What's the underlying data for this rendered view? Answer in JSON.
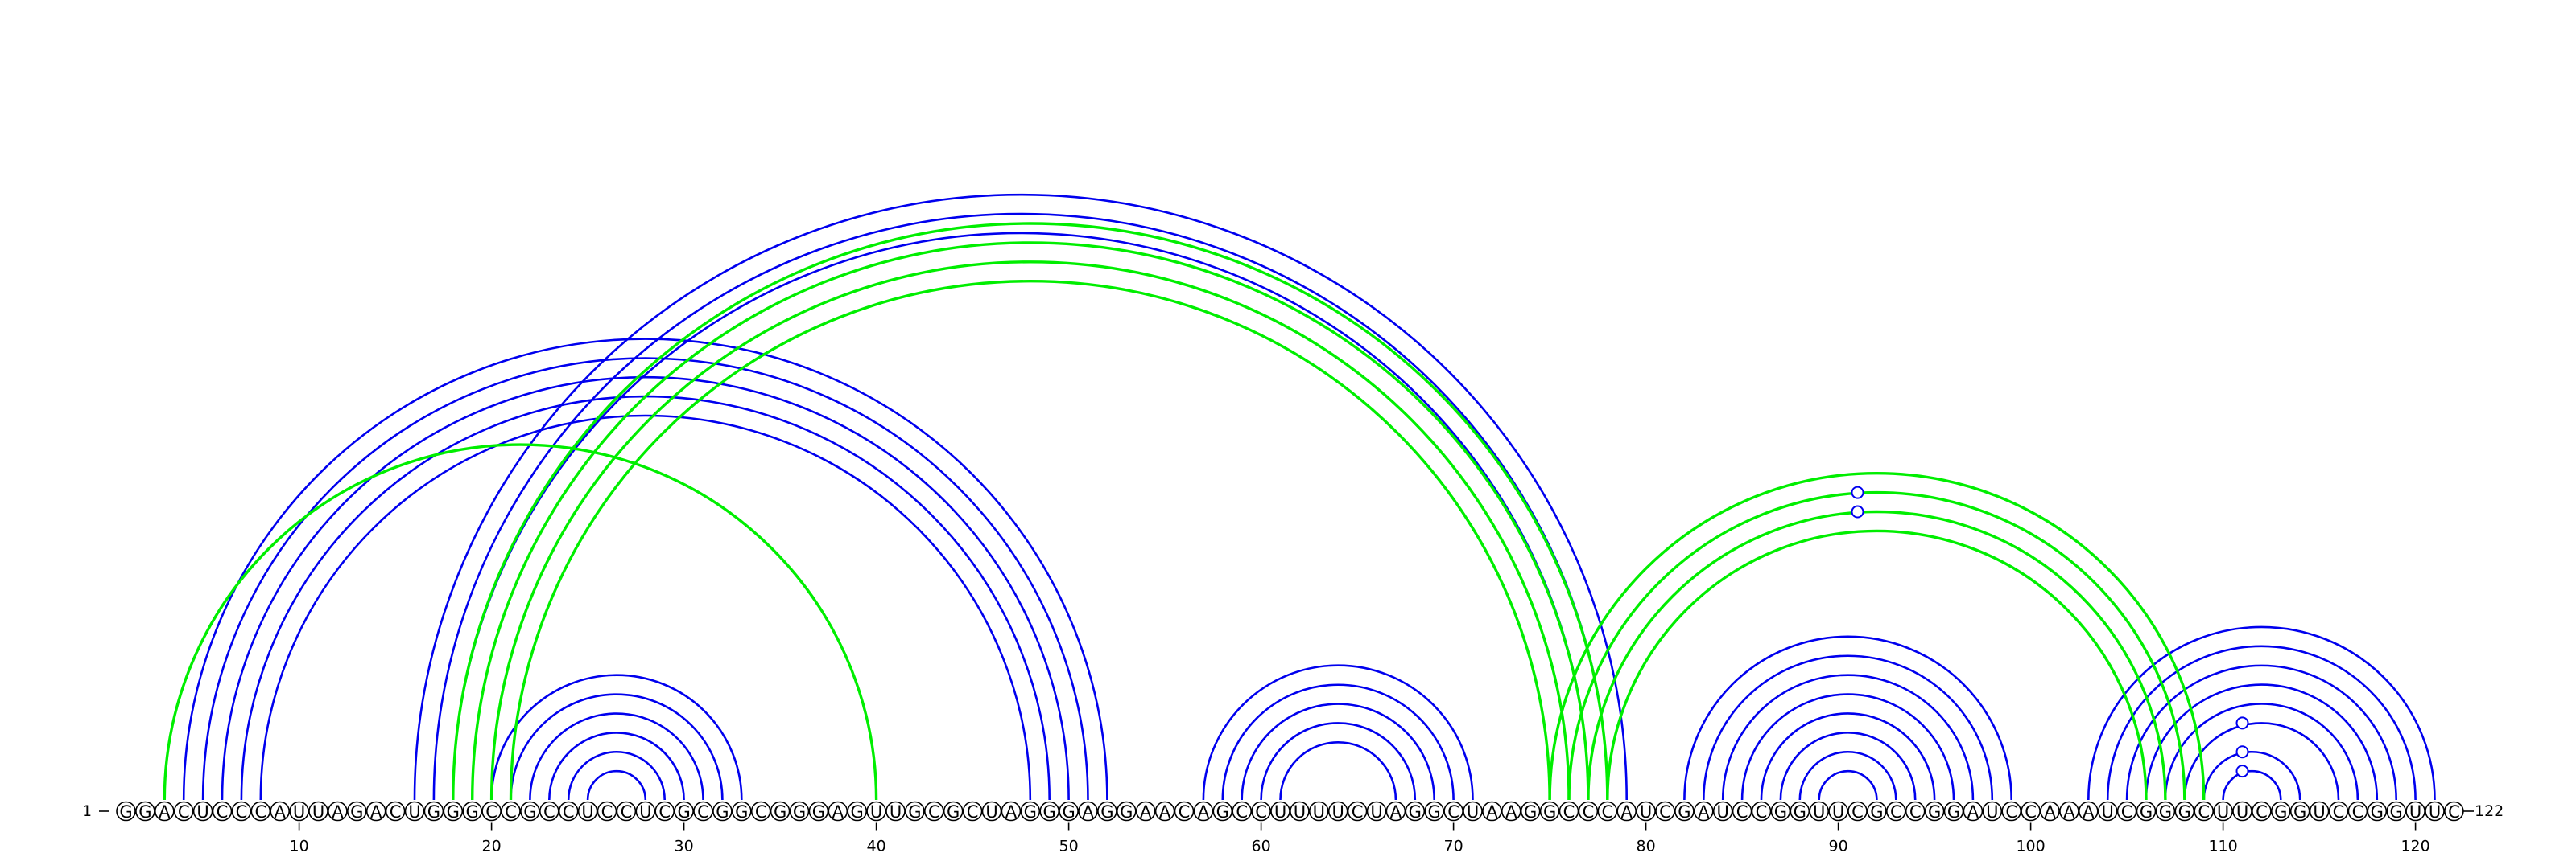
{
  "sequence": "GGACUCCCAUUAGACUGGGCCGCCUCCUCGCGGCGGGAGUUGCGCUAGGGAGGAACAGCCUUUUCUAGGCUAAGGCCCAUCGAUCCGGUUCGCCGGAUCCAAAUCGGGCUUCGGUCCGGUUC",
  "start_label": "1",
  "end_label": "122",
  "ticks": [
    10,
    20,
    30,
    40,
    50,
    60,
    70,
    80,
    90,
    100,
    110,
    120
  ],
  "colors": {
    "blue": "#0000ee",
    "green": "#00ee00",
    "text": "#000000"
  },
  "arc_groups": [
    {
      "name": "helix-left-outer",
      "color": "blue",
      "pairs": [
        [
          4,
          52
        ],
        [
          5,
          51
        ],
        [
          6,
          50
        ],
        [
          7,
          49
        ],
        [
          8,
          48
        ]
      ]
    },
    {
      "name": "helix-left-inner",
      "color": "blue",
      "pairs": [
        [
          16,
          79
        ],
        [
          17,
          78
        ],
        [
          18,
          77
        ]
      ]
    },
    {
      "name": "helix-small-1",
      "color": "blue",
      "pairs": [
        [
          20,
          33
        ],
        [
          21,
          32
        ],
        [
          22,
          31
        ],
        [
          23,
          30
        ],
        [
          24,
          29
        ],
        [
          25,
          28
        ]
      ]
    },
    {
      "name": "helix-small-2",
      "color": "blue",
      "pairs": [
        [
          57,
          71
        ],
        [
          58,
          70
        ],
        [
          59,
          69
        ],
        [
          60,
          68
        ],
        [
          61,
          67
        ]
      ]
    },
    {
      "name": "helix-small-3",
      "color": "blue",
      "pairs": [
        [
          82,
          99
        ],
        [
          83,
          98
        ],
        [
          84,
          97
        ],
        [
          85,
          96
        ],
        [
          86,
          95
        ],
        [
          87,
          94
        ],
        [
          88,
          93
        ],
        [
          89,
          92
        ]
      ]
    },
    {
      "name": "helix-small-4",
      "color": "blue",
      "pairs": [
        [
          103,
          121
        ],
        [
          104,
          120
        ],
        [
          105,
          119
        ],
        [
          106,
          118
        ],
        [
          107,
          117
        ],
        [
          108,
          116
        ],
        [
          109,
          114
        ],
        [
          110,
          113
        ]
      ]
    },
    {
      "name": "pk-single",
      "color": "green",
      "pairs": [
        [
          3,
          40
        ]
      ]
    },
    {
      "name": "pk-long",
      "color": "green",
      "pairs": [
        [
          18,
          78
        ],
        [
          19,
          77
        ],
        [
          20,
          76
        ],
        [
          21,
          75
        ]
      ]
    },
    {
      "name": "pk-right",
      "color": "green",
      "pairs": [
        [
          75,
          109
        ],
        [
          76,
          108
        ],
        [
          77,
          107
        ],
        [
          78,
          106
        ]
      ]
    }
  ],
  "markers": [
    91,
    111
  ]
}
